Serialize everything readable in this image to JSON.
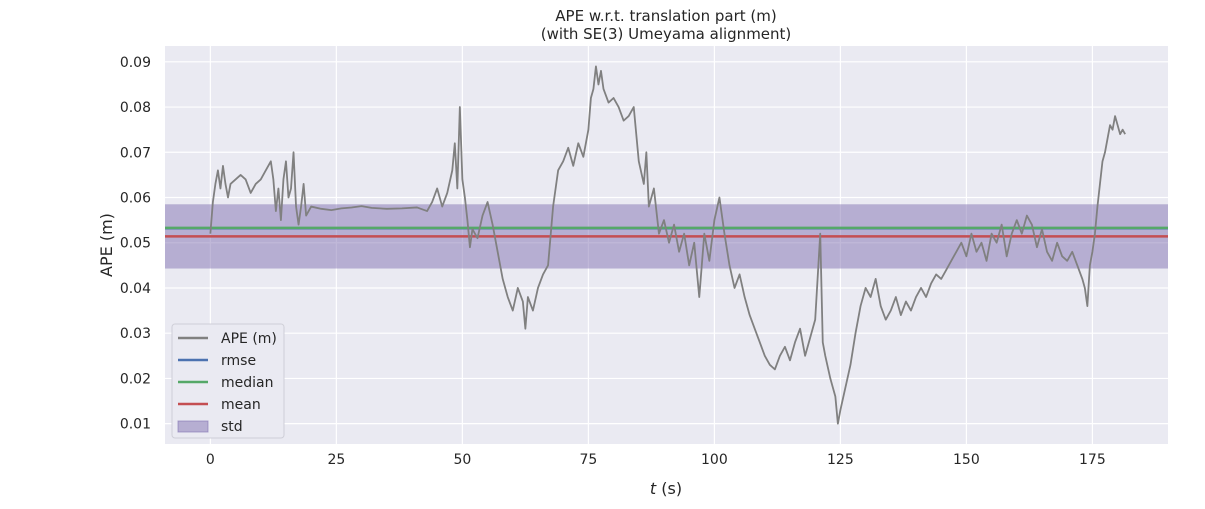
{
  "chart_data": {
    "type": "line",
    "title": "APE w.r.t. translation part (m)",
    "subtitle": "(with SE(3) Umeyama alignment)",
    "xlabel_italic": "t",
    "xlabel_unit": " (s)",
    "ylabel": "APE (m)",
    "xlim": [
      -9,
      190
    ],
    "ylim": [
      0.0055,
      0.0935
    ],
    "x_ticks": [
      0,
      25,
      50,
      75,
      100,
      125,
      150,
      175
    ],
    "y_ticks": [
      0.01,
      0.02,
      0.03,
      0.04,
      0.05,
      0.06,
      0.07,
      0.08,
      0.09
    ],
    "grid": true,
    "legend_position": "bottom-left",
    "legend": [
      {
        "label": "APE (m)",
        "kind": "line",
        "color": "#808080"
      },
      {
        "label": "rmse",
        "kind": "line",
        "color": "#4c72b0"
      },
      {
        "label": "median",
        "kind": "line",
        "color": "#55a868"
      },
      {
        "label": "mean",
        "kind": "line",
        "color": "#c44e52"
      },
      {
        "label": "std",
        "kind": "patch",
        "color": "#8172b2"
      }
    ],
    "stats": {
      "rmse": 0.0532,
      "median": 0.0533,
      "mean": 0.0514,
      "std_band": [
        0.0443,
        0.0585
      ]
    },
    "series": [
      {
        "name": "APE (m)",
        "color": "#808080",
        "points": [
          [
            0.0,
            0.052
          ],
          [
            0.5,
            0.059
          ],
          [
            1.0,
            0.063
          ],
          [
            1.5,
            0.066
          ],
          [
            2.0,
            0.062
          ],
          [
            2.5,
            0.067
          ],
          [
            3.0,
            0.063
          ],
          [
            3.5,
            0.06
          ],
          [
            4.0,
            0.063
          ],
          [
            5.0,
            0.064
          ],
          [
            6.0,
            0.065
          ],
          [
            7.0,
            0.064
          ],
          [
            8.0,
            0.061
          ],
          [
            9.0,
            0.063
          ],
          [
            10.0,
            0.064
          ],
          [
            11.0,
            0.066
          ],
          [
            12.0,
            0.068
          ],
          [
            12.5,
            0.064
          ],
          [
            13.0,
            0.057
          ],
          [
            13.5,
            0.062
          ],
          [
            14.0,
            0.055
          ],
          [
            14.5,
            0.064
          ],
          [
            15.0,
            0.068
          ],
          [
            15.5,
            0.06
          ],
          [
            16.0,
            0.062
          ],
          [
            16.5,
            0.07
          ],
          [
            17.0,
            0.058
          ],
          [
            17.5,
            0.054
          ],
          [
            18.0,
            0.058
          ],
          [
            18.5,
            0.063
          ],
          [
            19.0,
            0.056
          ],
          [
            20.0,
            0.058
          ],
          [
            22.0,
            0.0575
          ],
          [
            24.0,
            0.0572
          ],
          [
            26.0,
            0.0576
          ],
          [
            28.0,
            0.0578
          ],
          [
            30.0,
            0.0581
          ],
          [
            32.0,
            0.0577
          ],
          [
            35.0,
            0.0575
          ],
          [
            38.0,
            0.0576
          ],
          [
            41.0,
            0.0578
          ],
          [
            43.0,
            0.057
          ],
          [
            44.0,
            0.059
          ],
          [
            45.0,
            0.062
          ],
          [
            46.0,
            0.058
          ],
          [
            47.0,
            0.061
          ],
          [
            48.0,
            0.066
          ],
          [
            48.5,
            0.072
          ],
          [
            49.0,
            0.062
          ],
          [
            49.5,
            0.08
          ],
          [
            50.0,
            0.064
          ],
          [
            50.5,
            0.06
          ],
          [
            51.0,
            0.055
          ],
          [
            51.5,
            0.049
          ],
          [
            52.0,
            0.053
          ],
          [
            53.0,
            0.051
          ],
          [
            54.0,
            0.056
          ],
          [
            55.0,
            0.059
          ],
          [
            56.0,
            0.054
          ],
          [
            57.0,
            0.048
          ],
          [
            58.0,
            0.042
          ],
          [
            59.0,
            0.038
          ],
          [
            60.0,
            0.035
          ],
          [
            61.0,
            0.04
          ],
          [
            62.0,
            0.037
          ],
          [
            62.5,
            0.031
          ],
          [
            63.0,
            0.038
          ],
          [
            64.0,
            0.035
          ],
          [
            65.0,
            0.04
          ],
          [
            66.0,
            0.043
          ],
          [
            67.0,
            0.045
          ],
          [
            68.0,
            0.058
          ],
          [
            69.0,
            0.066
          ],
          [
            70.0,
            0.068
          ],
          [
            71.0,
            0.071
          ],
          [
            72.0,
            0.067
          ],
          [
            73.0,
            0.072
          ],
          [
            74.0,
            0.069
          ],
          [
            75.0,
            0.075
          ],
          [
            75.5,
            0.082
          ],
          [
            76.0,
            0.084
          ],
          [
            76.5,
            0.089
          ],
          [
            77.0,
            0.085
          ],
          [
            77.5,
            0.088
          ],
          [
            78.0,
            0.084
          ],
          [
            79.0,
            0.081
          ],
          [
            80.0,
            0.082
          ],
          [
            81.0,
            0.08
          ],
          [
            82.0,
            0.077
          ],
          [
            83.0,
            0.078
          ],
          [
            84.0,
            0.08
          ],
          [
            84.5,
            0.074
          ],
          [
            85.0,
            0.068
          ],
          [
            86.0,
            0.063
          ],
          [
            86.5,
            0.07
          ],
          [
            87.0,
            0.058
          ],
          [
            88.0,
            0.062
          ],
          [
            89.0,
            0.052
          ],
          [
            90.0,
            0.055
          ],
          [
            91.0,
            0.05
          ],
          [
            92.0,
            0.054
          ],
          [
            93.0,
            0.048
          ],
          [
            94.0,
            0.052
          ],
          [
            95.0,
            0.045
          ],
          [
            96.0,
            0.05
          ],
          [
            97.0,
            0.038
          ],
          [
            98.0,
            0.052
          ],
          [
            99.0,
            0.046
          ],
          [
            100.0,
            0.055
          ],
          [
            101.0,
            0.06
          ],
          [
            102.0,
            0.052
          ],
          [
            103.0,
            0.045
          ],
          [
            104.0,
            0.04
          ],
          [
            105.0,
            0.043
          ],
          [
            106.0,
            0.038
          ],
          [
            107.0,
            0.034
          ],
          [
            108.0,
            0.031
          ],
          [
            109.0,
            0.028
          ],
          [
            110.0,
            0.025
          ],
          [
            111.0,
            0.023
          ],
          [
            112.0,
            0.022
          ],
          [
            113.0,
            0.025
          ],
          [
            114.0,
            0.027
          ],
          [
            115.0,
            0.024
          ],
          [
            116.0,
            0.028
          ],
          [
            117.0,
            0.031
          ],
          [
            118.0,
            0.025
          ],
          [
            119.0,
            0.029
          ],
          [
            120.0,
            0.033
          ],
          [
            121.0,
            0.052
          ],
          [
            121.5,
            0.028
          ],
          [
            122.0,
            0.025
          ],
          [
            123.0,
            0.02
          ],
          [
            124.0,
            0.016
          ],
          [
            124.5,
            0.01
          ],
          [
            125.0,
            0.013
          ],
          [
            126.0,
            0.018
          ],
          [
            127.0,
            0.023
          ],
          [
            128.0,
            0.03
          ],
          [
            129.0,
            0.036
          ],
          [
            130.0,
            0.04
          ],
          [
            131.0,
            0.038
          ],
          [
            132.0,
            0.042
          ],
          [
            133.0,
            0.036
          ],
          [
            134.0,
            0.033
          ],
          [
            135.0,
            0.035
          ],
          [
            136.0,
            0.038
          ],
          [
            137.0,
            0.034
          ],
          [
            138.0,
            0.037
          ],
          [
            139.0,
            0.035
          ],
          [
            140.0,
            0.038
          ],
          [
            141.0,
            0.04
          ],
          [
            142.0,
            0.038
          ],
          [
            143.0,
            0.041
          ],
          [
            144.0,
            0.043
          ],
          [
            145.0,
            0.042
          ],
          [
            146.0,
            0.044
          ],
          [
            147.0,
            0.046
          ],
          [
            148.0,
            0.048
          ],
          [
            149.0,
            0.05
          ],
          [
            150.0,
            0.047
          ],
          [
            151.0,
            0.052
          ],
          [
            152.0,
            0.048
          ],
          [
            153.0,
            0.05
          ],
          [
            154.0,
            0.046
          ],
          [
            155.0,
            0.052
          ],
          [
            156.0,
            0.05
          ],
          [
            157.0,
            0.054
          ],
          [
            158.0,
            0.047
          ],
          [
            159.0,
            0.052
          ],
          [
            160.0,
            0.055
          ],
          [
            161.0,
            0.052
          ],
          [
            162.0,
            0.056
          ],
          [
            163.0,
            0.054
          ],
          [
            164.0,
            0.049
          ],
          [
            165.0,
            0.053
          ],
          [
            166.0,
            0.048
          ],
          [
            167.0,
            0.046
          ],
          [
            168.0,
            0.05
          ],
          [
            169.0,
            0.047
          ],
          [
            170.0,
            0.046
          ],
          [
            171.0,
            0.048
          ],
          [
            172.0,
            0.045
          ],
          [
            173.0,
            0.042
          ],
          [
            173.5,
            0.04
          ],
          [
            174.0,
            0.036
          ],
          [
            174.5,
            0.045
          ],
          [
            175.0,
            0.048
          ],
          [
            175.5,
            0.052
          ],
          [
            176.0,
            0.058
          ],
          [
            176.5,
            0.063
          ],
          [
            177.0,
            0.068
          ],
          [
            177.5,
            0.07
          ],
          [
            178.0,
            0.073
          ],
          [
            178.5,
            0.076
          ],
          [
            179.0,
            0.075
          ],
          [
            179.5,
            0.078
          ],
          [
            180.0,
            0.076
          ],
          [
            180.5,
            0.074
          ],
          [
            181.0,
            0.075
          ],
          [
            181.5,
            0.074
          ]
        ]
      }
    ]
  }
}
